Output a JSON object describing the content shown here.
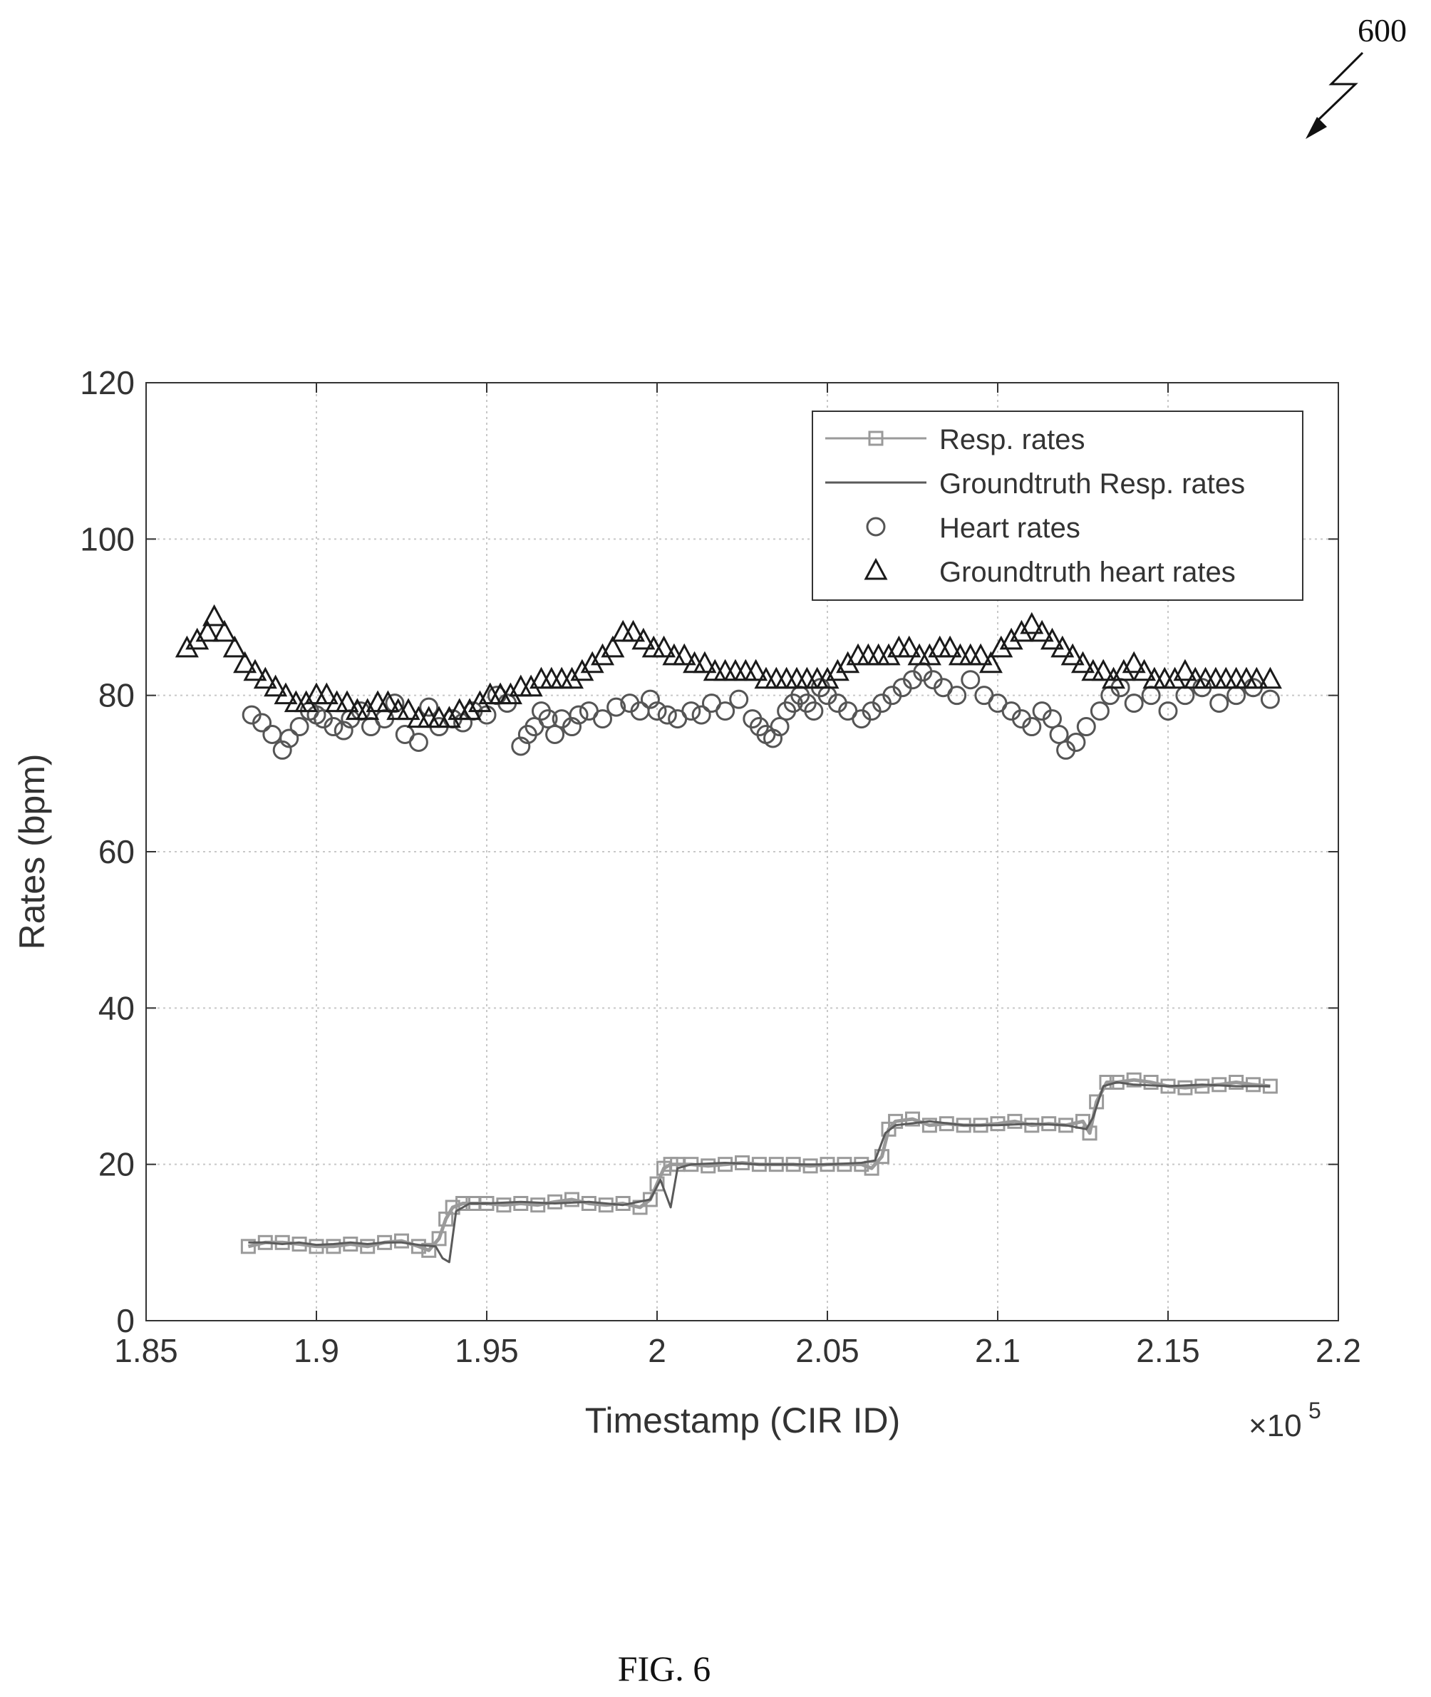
{
  "figure": {
    "ref_number": "600",
    "caption": "FIG. 6"
  },
  "colors": {
    "axis": "#333333",
    "grid": "#c8c8c8",
    "resp_rates": "#9a9a9a",
    "groundtruth_resp": "#5a5a5a",
    "heart_rates": "#555555",
    "groundtruth_heart": "#1a1a1a"
  },
  "chart_data": {
    "type": "line",
    "title": "",
    "xlabel": "Timestamp (CIR ID)",
    "ylabel": "Rates (bpm)",
    "x_multiplier_label": "×10",
    "x_multiplier_exponent": "5",
    "xlim": [
      1.85,
      2.2
    ],
    "ylim": [
      0,
      120
    ],
    "xticks": [
      1.85,
      1.9,
      1.95,
      2.0,
      2.05,
      2.1,
      2.15,
      2.2
    ],
    "xtick_labels": [
      "1.85",
      "1.9",
      "1.95",
      "2",
      "2.05",
      "2.1",
      "2.15",
      "2.2"
    ],
    "yticks": [
      0,
      20,
      40,
      60,
      80,
      100,
      120
    ],
    "ytick_labels": [
      "0",
      "20",
      "40",
      "60",
      "80",
      "100",
      "120"
    ],
    "grid": true,
    "legend_position": "top-right",
    "legend": [
      "Resp. rates",
      "Groundtruth Resp. rates",
      "Heart rates",
      "Groundtruth heart rates"
    ],
    "series": [
      {
        "name": "Resp. rates",
        "marker": "square",
        "line": true,
        "x": [
          1.88,
          1.885,
          1.89,
          1.895,
          1.9,
          1.905,
          1.91,
          1.915,
          1.92,
          1.925,
          1.93,
          1.933,
          1.936,
          1.938,
          1.94,
          1.943,
          1.946,
          1.95,
          1.955,
          1.96,
          1.965,
          1.97,
          1.975,
          1.98,
          1.985,
          1.99,
          1.995,
          1.998,
          2.0,
          2.002,
          2.004,
          2.006,
          2.01,
          2.015,
          2.02,
          2.025,
          2.03,
          2.035,
          2.04,
          2.045,
          2.05,
          2.055,
          2.06,
          2.063,
          2.066,
          2.068,
          2.07,
          2.075,
          2.08,
          2.085,
          2.09,
          2.095,
          2.1,
          2.105,
          2.11,
          2.115,
          2.12,
          2.125,
          2.127,
          2.129,
          2.132,
          2.135,
          2.14,
          2.145,
          2.15,
          2.155,
          2.16,
          2.165,
          2.17,
          2.175,
          2.18
        ],
        "y": [
          9.5,
          10,
          10,
          9.8,
          9.5,
          9.5,
          9.8,
          9.5,
          10,
          10.2,
          9.5,
          9,
          10.5,
          13,
          14.5,
          15,
          15,
          15,
          14.8,
          15,
          14.8,
          15.2,
          15.5,
          15,
          14.8,
          15,
          14.5,
          15.5,
          17.5,
          19.5,
          20,
          20,
          20,
          19.8,
          20,
          20.2,
          20,
          20,
          20,
          19.8,
          20,
          20,
          20,
          19.5,
          21,
          24.5,
          25.5,
          25.8,
          25,
          25.2,
          25,
          25,
          25.2,
          25.5,
          25,
          25.2,
          25,
          25.5,
          24,
          28,
          30.5,
          30.5,
          30.8,
          30.5,
          30,
          29.8,
          30,
          30.2,
          30.5,
          30.2,
          30
        ]
      },
      {
        "name": "Groundtruth Resp. rates",
        "marker": "none",
        "line": true,
        "x": [
          1.88,
          1.885,
          1.89,
          1.895,
          1.9,
          1.905,
          1.91,
          1.915,
          1.92,
          1.925,
          1.93,
          1.935,
          1.937,
          1.939,
          1.941,
          1.945,
          1.95,
          1.96,
          1.97,
          1.98,
          1.99,
          1.998,
          2.001,
          2.004,
          2.006,
          2.01,
          2.02,
          2.03,
          2.04,
          2.05,
          2.06,
          2.064,
          2.067,
          2.07,
          2.08,
          2.09,
          2.1,
          2.11,
          2.12,
          2.126,
          2.128,
          2.131,
          2.135,
          2.14,
          2.15,
          2.16,
          2.17,
          2.18
        ],
        "y": [
          10,
          10,
          9.8,
          10,
          9.7,
          9.8,
          10,
          9.8,
          10,
          10,
          9.7,
          9.5,
          8,
          7.5,
          14,
          15,
          15,
          15.2,
          15,
          15.2,
          14.8,
          15.5,
          18,
          14.5,
          19.5,
          20,
          20.2,
          20,
          20,
          20,
          20.2,
          20.5,
          24,
          25,
          25.5,
          25,
          25,
          25.2,
          25,
          24.5,
          26,
          30,
          30.5,
          30.2,
          30,
          30.2,
          30,
          30
        ]
      },
      {
        "name": "Heart rates",
        "marker": "circle",
        "line": false,
        "x": [
          1.881,
          1.884,
          1.887,
          1.89,
          1.892,
          1.895,
          1.898,
          1.9,
          1.902,
          1.905,
          1.908,
          1.91,
          1.913,
          1.916,
          1.92,
          1.923,
          1.926,
          1.93,
          1.933,
          1.936,
          1.94,
          1.943,
          1.946,
          1.95,
          1.953,
          1.956,
          1.96,
          1.962,
          1.964,
          1.966,
          1.968,
          1.97,
          1.972,
          1.975,
          1.977,
          1.98,
          1.984,
          1.988,
          1.992,
          1.995,
          1.998,
          2.0,
          2.003,
          2.006,
          2.01,
          2.013,
          2.016,
          2.02,
          2.024,
          2.028,
          2.03,
          2.032,
          2.034,
          2.036,
          2.038,
          2.04,
          2.042,
          2.044,
          2.046,
          2.048,
          2.05,
          2.053,
          2.056,
          2.06,
          2.063,
          2.066,
          2.069,
          2.072,
          2.075,
          2.078,
          2.081,
          2.084,
          2.088,
          2.092,
          2.096,
          2.1,
          2.104,
          2.107,
          2.11,
          2.113,
          2.116,
          2.118,
          2.12,
          2.123,
          2.126,
          2.13,
          2.133,
          2.136,
          2.14,
          2.145,
          2.15,
          2.155,
          2.16,
          2.165,
          2.17,
          2.175,
          2.18
        ],
        "y": [
          77.5,
          76.5,
          75,
          73,
          74.5,
          76,
          78,
          77.5,
          77,
          76,
          75.5,
          77,
          78,
          76,
          77,
          79,
          75,
          74,
          78.5,
          76,
          77,
          76.5,
          78,
          77.5,
          80,
          79,
          73.5,
          75,
          76,
          78,
          77,
          75,
          77,
          76,
          77.5,
          78,
          77,
          78.5,
          79,
          78,
          79.5,
          78,
          77.5,
          77,
          78,
          77.5,
          79,
          78,
          79.5,
          77,
          76,
          75,
          74.5,
          76,
          78,
          79,
          80,
          79,
          78,
          81,
          80,
          79,
          78,
          77,
          78,
          79,
          80,
          81,
          82,
          83,
          82,
          81,
          80,
          82,
          80,
          79,
          78,
          77,
          76,
          78,
          77,
          75,
          73,
          74,
          76,
          78,
          80,
          81,
          79,
          80,
          78,
          80,
          81,
          79,
          80,
          81,
          79.5
        ]
      },
      {
        "name": "Groundtruth heart rates",
        "marker": "triangle",
        "line": false,
        "x": [
          1.862,
          1.865,
          1.868,
          1.87,
          1.873,
          1.876,
          1.879,
          1.882,
          1.885,
          1.888,
          1.891,
          1.894,
          1.897,
          1.9,
          1.903,
          1.906,
          1.909,
          1.912,
          1.915,
          1.918,
          1.921,
          1.924,
          1.927,
          1.93,
          1.933,
          1.936,
          1.939,
          1.942,
          1.945,
          1.948,
          1.951,
          1.954,
          1.957,
          1.96,
          1.963,
          1.966,
          1.969,
          1.972,
          1.975,
          1.978,
          1.981,
          1.984,
          1.987,
          1.99,
          1.993,
          1.996,
          1.999,
          2.002,
          2.005,
          2.008,
          2.011,
          2.014,
          2.017,
          2.02,
          2.023,
          2.026,
          2.029,
          2.032,
          2.035,
          2.038,
          2.041,
          2.044,
          2.047,
          2.05,
          2.053,
          2.056,
          2.059,
          2.062,
          2.065,
          2.068,
          2.071,
          2.074,
          2.077,
          2.08,
          2.083,
          2.086,
          2.089,
          2.092,
          2.095,
          2.098,
          2.101,
          2.104,
          2.107,
          2.11,
          2.113,
          2.116,
          2.119,
          2.122,
          2.125,
          2.128,
          2.131,
          2.134,
          2.137,
          2.14,
          2.143,
          2.146,
          2.149,
          2.152,
          2.155,
          2.158,
          2.161,
          2.164,
          2.167,
          2.17,
          2.173,
          2.176,
          2.18
        ],
        "y": [
          86,
          87,
          88,
          90,
          88,
          86,
          84,
          83,
          82,
          81,
          80,
          79,
          79,
          80,
          80,
          79,
          79,
          78,
          78,
          79,
          79,
          78,
          78,
          77,
          77,
          77,
          77,
          78,
          78,
          79,
          80,
          80,
          80,
          81,
          81,
          82,
          82,
          82,
          82,
          83,
          84,
          85,
          86,
          88,
          88,
          87,
          86,
          86,
          85,
          85,
          84,
          84,
          83,
          83,
          83,
          83,
          83,
          82,
          82,
          82,
          82,
          82,
          82,
          82,
          83,
          84,
          85,
          85,
          85,
          85,
          86,
          86,
          85,
          85,
          86,
          86,
          85,
          85,
          85,
          84,
          86,
          87,
          88,
          89,
          88,
          87,
          86,
          85,
          84,
          83,
          83,
          82,
          83,
          84,
          83,
          82,
          82,
          82,
          83,
          82,
          82,
          82,
          82,
          82,
          82,
          82,
          82
        ]
      }
    ]
  }
}
